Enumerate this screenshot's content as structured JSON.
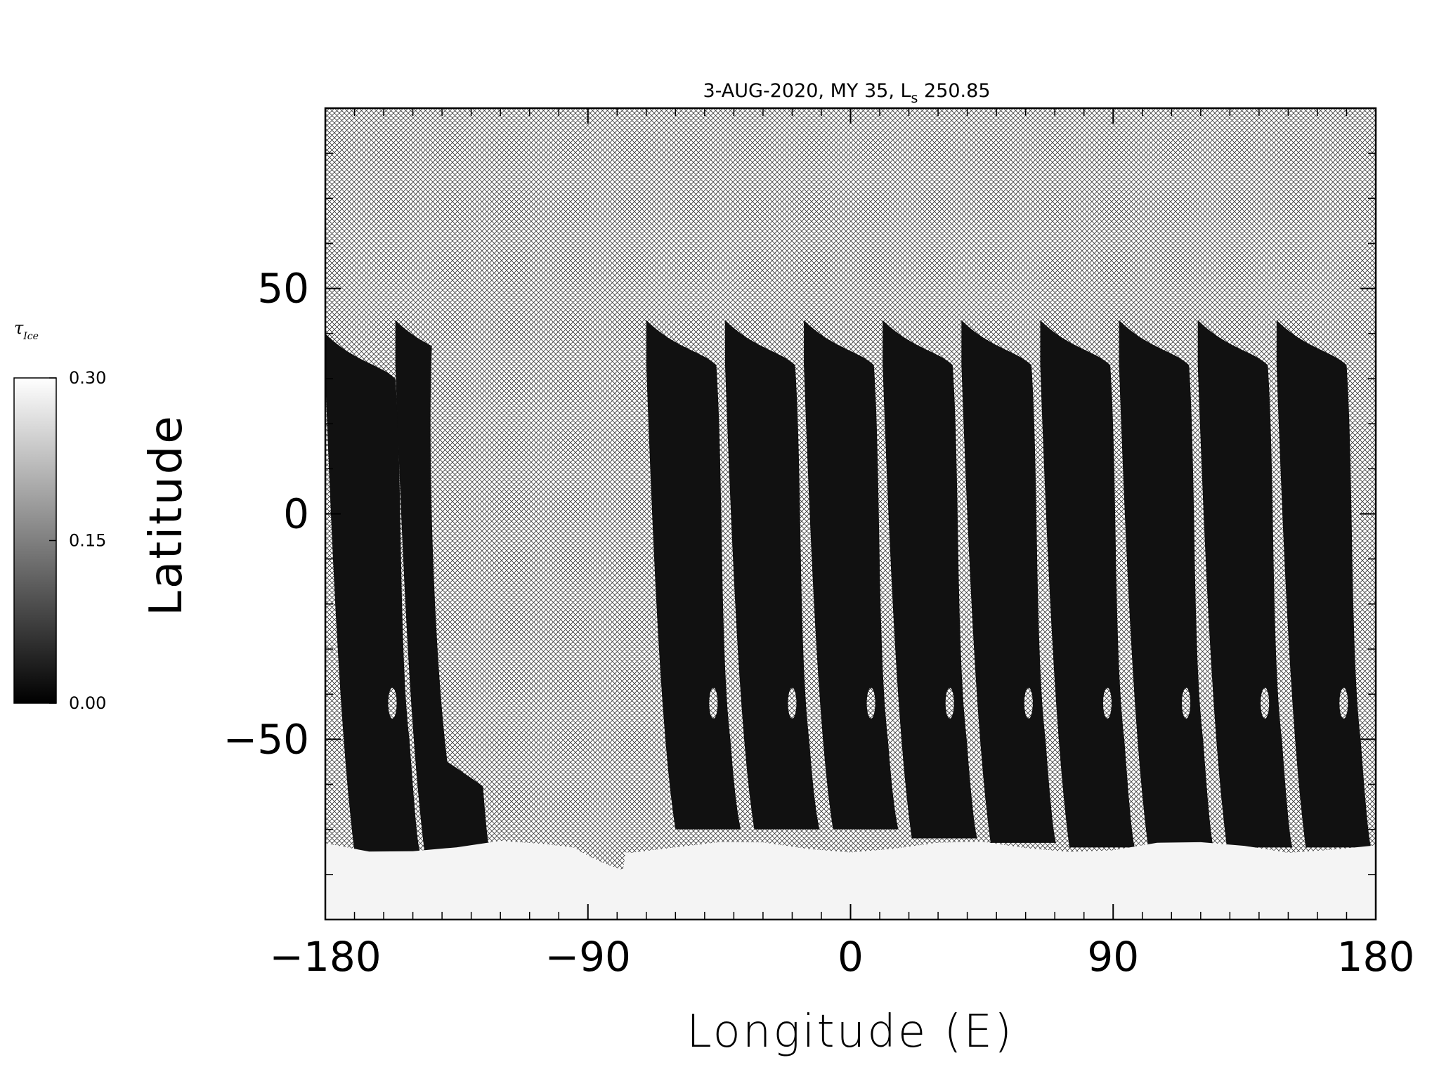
{
  "chart_data": {
    "type": "heatmap",
    "title": "3-AUG-2020, MY 35,  L",
    "title_subscript": "s",
    "title_suffix": " 250.85",
    "xlabel": "Longitude (E)",
    "ylabel": "Latitude",
    "xlim": [
      -180,
      180
    ],
    "ylim": [
      -90,
      90
    ],
    "x_ticks": [
      -180,
      -90,
      0,
      90,
      180
    ],
    "y_ticks": [
      -50,
      0,
      50
    ],
    "x_tick_labels": [
      "−180",
      "−90",
      "0",
      "90",
      "180"
    ],
    "y_tick_labels": [
      "−50",
      "0",
      "50"
    ],
    "colorbar": {
      "symbol": "τ",
      "symbol_subscript": "Ice",
      "min": 0.0,
      "max": 0.3,
      "tick_values": [
        0.0,
        0.15,
        0.3
      ],
      "tick_labels": [
        "0.00",
        "0.15",
        "0.30"
      ],
      "colormap": "grayscale",
      "placement": "left"
    },
    "no_data_fill": "cross-hatch",
    "swaths": [
      {
        "lon_top": -180,
        "lat_top": 40,
        "lat_bottom": -75
      },
      {
        "lon_top": -156,
        "lat_top": 43,
        "lat_bottom": -75
      },
      {
        "lon_top": -70,
        "lat_top": 43,
        "lat_bottom": -70
      },
      {
        "lon_top": -43,
        "lat_top": 43,
        "lat_bottom": -70
      },
      {
        "lon_top": -16,
        "lat_top": 43,
        "lat_bottom": -70
      },
      {
        "lon_top": 11,
        "lat_top": 43,
        "lat_bottom": -72
      },
      {
        "lon_top": 38,
        "lat_top": 43,
        "lat_bottom": -73
      },
      {
        "lon_top": 65,
        "lat_top": 43,
        "lat_bottom": -74
      },
      {
        "lon_top": 92,
        "lat_top": 43,
        "lat_bottom": -74
      },
      {
        "lon_top": 119,
        "lat_top": 43,
        "lat_bottom": -74
      },
      {
        "lon_top": 146,
        "lat_top": 43,
        "lat_bottom": -74
      }
    ],
    "polar_ice_region": {
      "lat_max": -72,
      "tau": 0.3
    },
    "grid": false
  }
}
